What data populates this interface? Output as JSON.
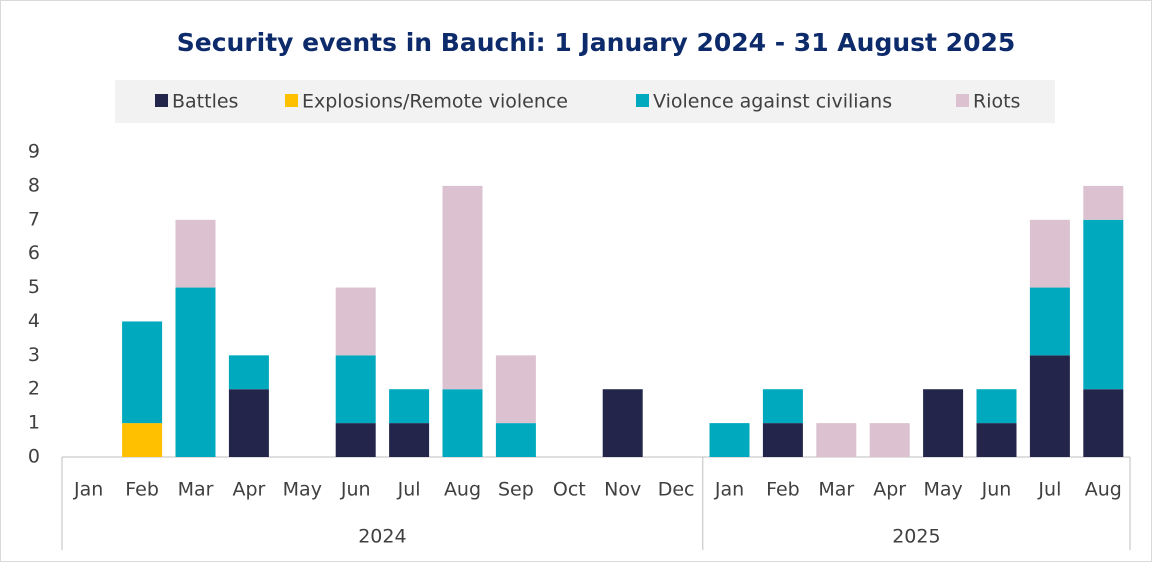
{
  "chart_data": {
    "type": "stacked_bar",
    "title": "Security events in Bauchi: 1 January 2024 - 31 August 2025",
    "groups": [
      {
        "name": "2024",
        "categories": [
          "Jan",
          "Feb",
          "Mar",
          "Apr",
          "May",
          "Jun",
          "Jul",
          "Aug",
          "Sep",
          "Oct",
          "Nov",
          "Dec"
        ]
      },
      {
        "name": "2025",
        "categories": [
          "Jan",
          "Feb",
          "Mar",
          "Apr",
          "May",
          "Jun",
          "Jul",
          "Aug"
        ]
      }
    ],
    "series": [
      {
        "name": "Battles",
        "color": "#23264a",
        "values": [
          0,
          0,
          0,
          2,
          0,
          1,
          1,
          0,
          0,
          0,
          2,
          0,
          0,
          1,
          0,
          0,
          2,
          1,
          3,
          2
        ]
      },
      {
        "name": "Explosions/Remote violence",
        "color": "#ffc000",
        "values": [
          0,
          1,
          0,
          0,
          0,
          0,
          0,
          0,
          0,
          0,
          0,
          0,
          0,
          0,
          0,
          0,
          0,
          0,
          0,
          0
        ]
      },
      {
        "name": "Violence against civilians",
        "color": "#00a9be",
        "values": [
          0,
          3,
          5,
          1,
          0,
          2,
          1,
          2,
          1,
          0,
          0,
          0,
          1,
          1,
          0,
          0,
          0,
          1,
          2,
          5
        ]
      },
      {
        "name": "Riots",
        "color": "#dcc2d0",
        "values": [
          0,
          0,
          2,
          0,
          0,
          2,
          0,
          6,
          2,
          0,
          0,
          0,
          0,
          0,
          1,
          1,
          0,
          0,
          2,
          1
        ]
      }
    ],
    "ylim": [
      0,
      9
    ],
    "yticks": [
      0,
      1,
      2,
      3,
      4,
      5,
      6,
      7,
      8,
      9
    ],
    "legend": "top"
  }
}
